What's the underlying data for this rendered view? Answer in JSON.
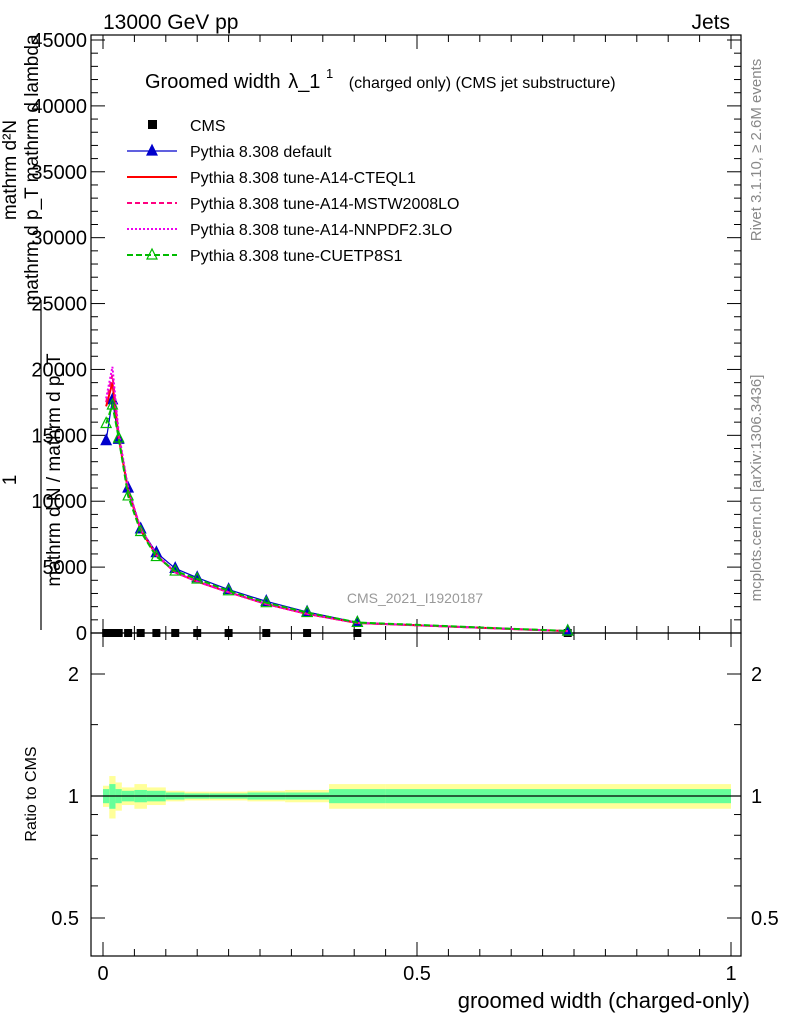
{
  "header": {
    "left": "13000 GeV pp",
    "right": "Jets"
  },
  "side_labels": {
    "rivet": "Rivet 3.1.10, ≥ 2.6M events",
    "source": "mcplots.cern.ch [arXiv:1306.3436]"
  },
  "analysis_id": "CMS_2021_I1920187",
  "title": {
    "main": "Groomed width",
    "lambda": "λ_1",
    "sup": "1",
    "sub": "(charged only) (CMS jet substructure)"
  },
  "ylabel_main": {
    "line1": "mathrm d²N",
    "line2": "mathrm d p_T mathrm d lambda",
    "line3": "1",
    "line4": "mathrm d N / mathrm d p_T"
  },
  "ylabel_ratio": "Ratio to CMS",
  "xlabel": "groomed width (charged-only)",
  "colors": {
    "cms": "#000000",
    "default": "#0000cc",
    "cteql1": "#ff0000",
    "mstw": "#ff0080",
    "nnpdf": "#ee00ee",
    "cuetp8s1": "#00bb00",
    "band_inner": "#66ff99",
    "band_outer": "#ffff99"
  },
  "chart_data": {
    "type": "line",
    "xlim": [
      -0.02,
      1.0
    ],
    "ylim": [
      0,
      45000
    ],
    "ratio_ylim": [
      0.36,
      2.3
    ],
    "xticks": [
      "0",
      "0.5",
      "1"
    ],
    "yticks": [
      "0",
      "5000",
      "10000",
      "15000",
      "20000",
      "25000",
      "30000",
      "35000",
      "40000",
      "45000"
    ],
    "ratio_yticks": [
      "0.5",
      "1",
      "2"
    ],
    "x": [
      0.005,
      0.015,
      0.025,
      0.04,
      0.06,
      0.085,
      0.115,
      0.15,
      0.2,
      0.26,
      0.325,
      0.405,
      0.74
    ],
    "bin_edges": [
      0,
      0.01,
      0.02,
      0.03,
      0.05,
      0.07,
      0.1,
      0.13,
      0.17,
      0.23,
      0.29,
      0.36,
      0.45,
      1.0
    ],
    "legend": [
      {
        "key": "cms",
        "label": "CMS",
        "marker": "square",
        "dash": ""
      },
      {
        "key": "default",
        "label": "Pythia 8.308 default",
        "marker": "triangle",
        "dash": ""
      },
      {
        "key": "cteql1",
        "label": "Pythia 8.308 tune-A14-CTEQL1",
        "marker": "none",
        "dash": ""
      },
      {
        "key": "mstw",
        "label": "Pythia 8.308 tune-A14-MSTW2008LO",
        "marker": "none",
        "dash": "5,3"
      },
      {
        "key": "nnpdf",
        "label": "Pythia 8.308 tune-A14-NNPDF2.3LO",
        "marker": "none",
        "dash": "2,2"
      },
      {
        "key": "cuetp8s1",
        "label": "Pythia 8.308 tune-CUETP8S1",
        "marker": "triangle-open",
        "dash": "6,3"
      }
    ],
    "series": [
      {
        "key": "cms",
        "name": "CMS",
        "values": [
          0,
          0,
          0,
          0,
          0,
          0,
          0,
          0,
          0,
          0,
          0,
          0,
          0
        ]
      },
      {
        "key": "default",
        "name": "Pythia 8.308 default",
        "values": [
          14600,
          17700,
          14700,
          11000,
          7900,
          6100,
          4900,
          4200,
          3300,
          2400,
          1600,
          800,
          150
        ]
      },
      {
        "key": "cteql1",
        "name": "Pythia 8.308 tune-A14-CTEQL1",
        "values": [
          17200,
          19000,
          14800,
          10800,
          7800,
          5900,
          4600,
          3900,
          3100,
          2200,
          1450,
          760,
          140
        ]
      },
      {
        "key": "mstw",
        "name": "Pythia 8.308 tune-A14-MSTW2008LO",
        "values": [
          17500,
          19600,
          15000,
          10900,
          7900,
          5900,
          4600,
          3900,
          3100,
          2200,
          1450,
          760,
          140
        ]
      },
      {
        "key": "nnpdf",
        "name": "Pythia 8.308 tune-A14-NNPDF2.3LO",
        "values": [
          17800,
          20200,
          15200,
          11000,
          7900,
          6000,
          4600,
          3900,
          3100,
          2200,
          1450,
          760,
          140
        ]
      },
      {
        "key": "cuetp8s1",
        "name": "Pythia 8.308 tune-CUETP8S1",
        "values": [
          15900,
          17300,
          14800,
          10400,
          7700,
          5800,
          4700,
          4100,
          3200,
          2300,
          1550,
          800,
          150
        ]
      }
    ],
    "ratio_band": {
      "inner": [
        0.04,
        0.07,
        0.04,
        0.03,
        0.035,
        0.03,
        0.02,
        0.015,
        0.015,
        0.02,
        0.02,
        0.04,
        0.04
      ],
      "outer": [
        0.06,
        0.12,
        0.08,
        0.05,
        0.07,
        0.05,
        0.03,
        0.025,
        0.025,
        0.03,
        0.035,
        0.07,
        0.07
      ]
    }
  }
}
